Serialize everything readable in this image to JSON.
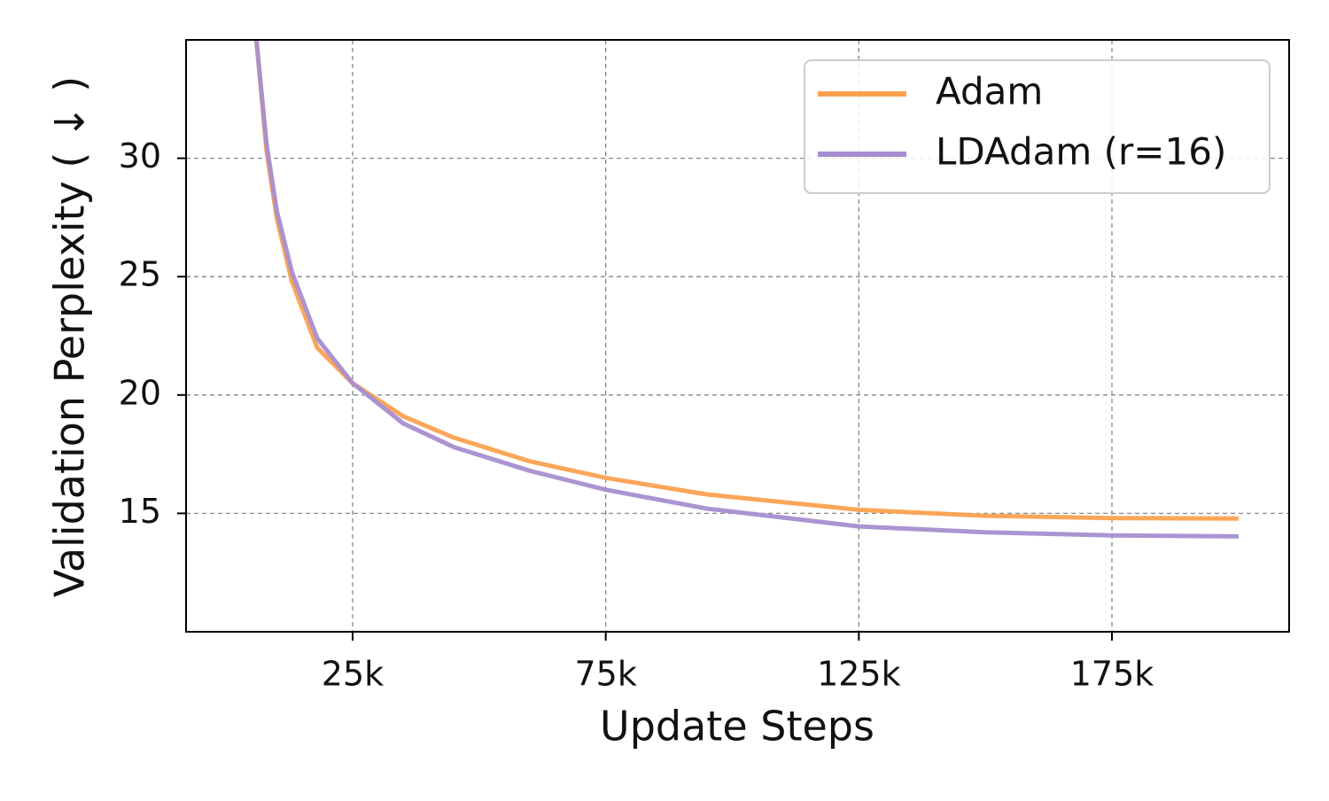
{
  "chart_data": {
    "type": "line",
    "x_label": "Update Steps",
    "y_label": "Validation Perplexity ( ↓ )",
    "x": [
      6000,
      8000,
      10000,
      13000,
      18000,
      25000,
      35000,
      45000,
      60000,
      75000,
      95000,
      125000,
      150000,
      175000,
      200000
    ],
    "series": [
      {
        "name": "Adam",
        "color": "#fba150",
        "values": [
          35,
          30.3,
          27.5,
          24.8,
          22,
          20.5,
          19.1,
          18.2,
          17.2,
          16.5,
          15.8,
          15.15,
          14.9,
          14.8,
          14.78
        ]
      },
      {
        "name": "LDAdam (r=16)",
        "color": "#a68ed0",
        "values": [
          35,
          30.6,
          27.8,
          25.2,
          22.4,
          20.5,
          18.8,
          17.8,
          16.8,
          16.0,
          15.2,
          14.45,
          14.2,
          14.07,
          14.03
        ]
      }
    ],
    "xlim": [
      -7900,
      210000
    ],
    "ylim": [
      10,
      35
    ],
    "xticks": [
      {
        "value": 25000,
        "label": "25k"
      },
      {
        "value": 75000,
        "label": "75k"
      },
      {
        "value": 125000,
        "label": "125k"
      },
      {
        "value": 175000,
        "label": "175k"
      }
    ],
    "yticks": [
      15,
      20,
      25,
      30
    ],
    "grid": true,
    "legend": "upper-right"
  }
}
